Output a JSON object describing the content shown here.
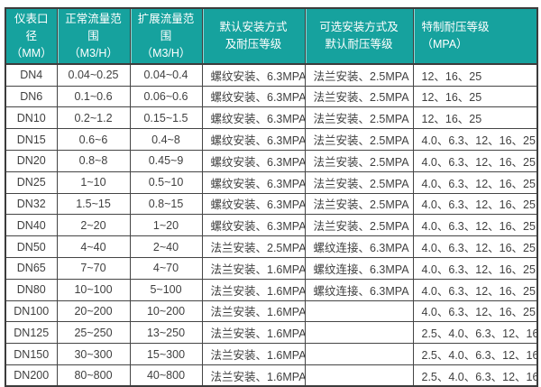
{
  "theme": {
    "header_bg": "#16a29e",
    "header_text": "#ffffff",
    "border_color": "#454545",
    "outer_border_color": "#3c3c3c",
    "body_text": "#3f3f3f",
    "body_bg": "#ffffff"
  },
  "table": {
    "headers": [
      {
        "line1": "仪表口径",
        "line2": "（MM）"
      },
      {
        "line1": "正常流量范围",
        "line2": "（M3/H）"
      },
      {
        "line1": "扩展流量范围",
        "line2": "（M3/H）"
      },
      {
        "line1": "默认安装方式",
        "line2": "及耐压等级"
      },
      {
        "line1": "可选安装方式及",
        "line2": "默认耐压等级"
      },
      {
        "line1": "特制耐压等级",
        "line2": "（MPA）"
      }
    ],
    "column_alignments": [
      "center",
      "center",
      "center",
      "left",
      "left",
      "left"
    ],
    "rows": [
      [
        "DN4",
        "0.04~0.25",
        "0.04~0.4",
        "螺纹安装、6.3MPA",
        "法兰安装、2.5MPA",
        "12、16、25"
      ],
      [
        "DN6",
        "0.1~0.6",
        "0.06~0.6",
        "螺纹安装、6.3MPA",
        "法兰安装、2.5MPA",
        "12、16、25"
      ],
      [
        "DN10",
        "0.2~1.2",
        "0.15~1.5",
        "螺纹安装、6.3MPA",
        "法兰安装、2.5MPA",
        "12、16、25"
      ],
      [
        "DN15",
        "0.6~6",
        "0.4~8",
        "螺纹安装、6.3MPA",
        "法兰安装、2.5MPA",
        "4.0、6.3、12、16、25"
      ],
      [
        "DN20",
        "0.8~8",
        "0.45~9",
        "螺纹安装、6.3MPA",
        "法兰安装、2.5MPA",
        "4.0、6.3、12、16、25"
      ],
      [
        "DN25",
        "1~10",
        "0.5~10",
        "螺纹安装、6.3MPA",
        "法兰安装、2.5MPA",
        "4.0、6.3、12、16、25"
      ],
      [
        "DN32",
        "1.5~15",
        "0.8~15",
        "螺纹安装、6.3MPA",
        "法兰安装、2.5MPA",
        "4.0、6.3、12、16、25"
      ],
      [
        "DN40",
        "2~20",
        "1~20",
        "螺纹安装、6.3MPA",
        "法兰安装、2.5MPA",
        "4.0、6.3、12、16、25"
      ],
      [
        "DN50",
        "4~40",
        "2~40",
        "法兰安装、2.5MPA",
        "螺纹连接、6.3MPA",
        "4.0、6.3、12、16、25"
      ],
      [
        "DN65",
        "7~70",
        "4~70",
        "法兰安装、1.6MPA",
        "螺纹连接、6.3MPA",
        "4.0、6.3、12、16、25"
      ],
      [
        "DN80",
        "10~100",
        "5~100",
        "法兰安装、1.6MPA",
        "螺纹连接、6.3MPA",
        "4.0、6.3、12、16、25"
      ],
      [
        "DN100",
        "20~200",
        "10~200",
        "法兰安装、1.6MPA",
        "",
        "4.0、6.3、12、16、25"
      ],
      [
        "DN125",
        "25~250",
        "13~250",
        "法兰安装、1.6MPA",
        "",
        "2.5、4.0、6.3、12、16"
      ],
      [
        "DN150",
        "30~300",
        "15~300",
        "法兰安装、1.6MPA",
        "",
        "2.5、4.0、6.3、12、16"
      ],
      [
        "DN200",
        "80~800",
        "40~800",
        "法兰安装、1.6MPA",
        "",
        "2.5、4.0、6.3、12、16"
      ]
    ]
  }
}
